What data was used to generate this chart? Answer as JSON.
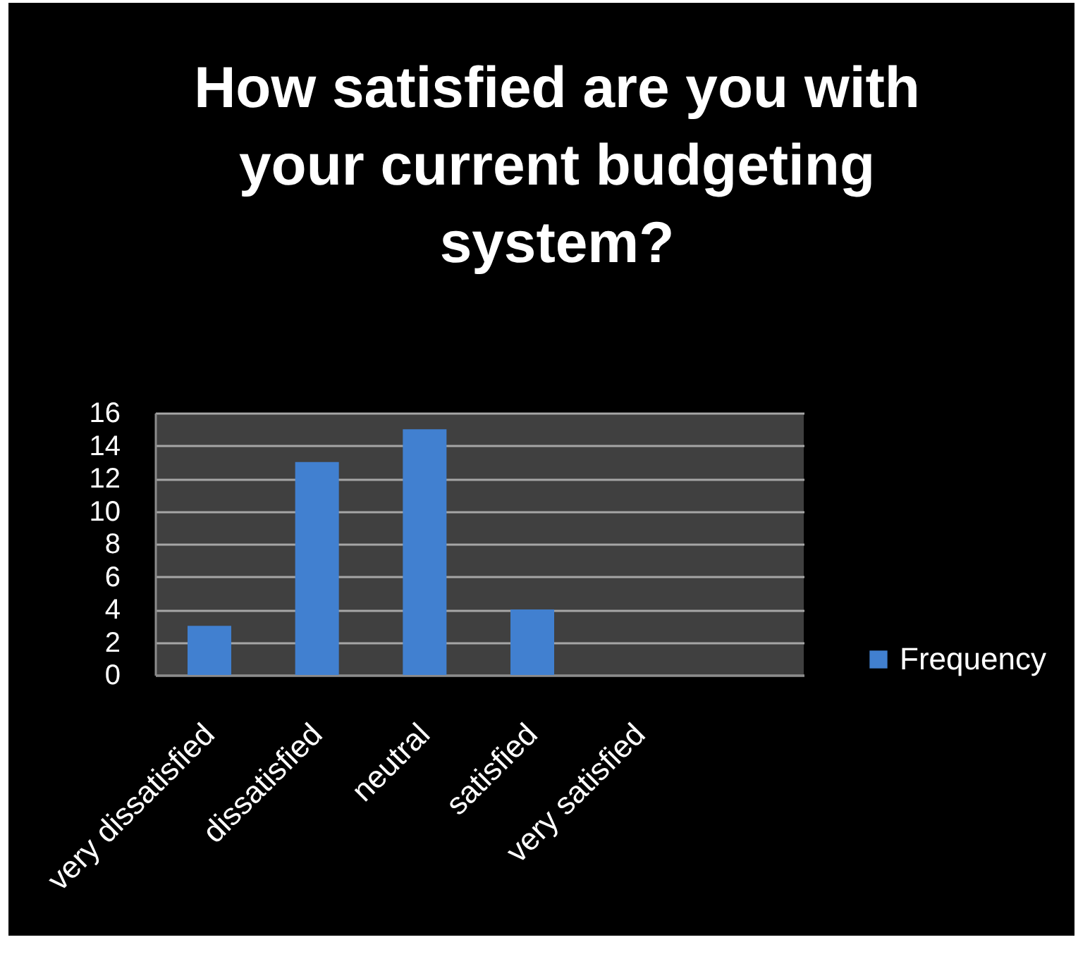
{
  "chart_data": {
    "type": "bar",
    "title": "How satisfied are you with your current budgeting system?",
    "categories": [
      "very dissatisfied",
      "dissatisfied",
      "neutral",
      "satisfied",
      "very satisfied"
    ],
    "series": [
      {
        "name": "Frequency",
        "color": "#4180d0",
        "values": [
          3,
          13,
          15,
          4,
          0
        ]
      }
    ],
    "ylim": [
      0,
      16
    ],
    "yticks": [
      0,
      2,
      4,
      6,
      8,
      10,
      12,
      14,
      16
    ],
    "grid": "y",
    "legend": "right"
  }
}
